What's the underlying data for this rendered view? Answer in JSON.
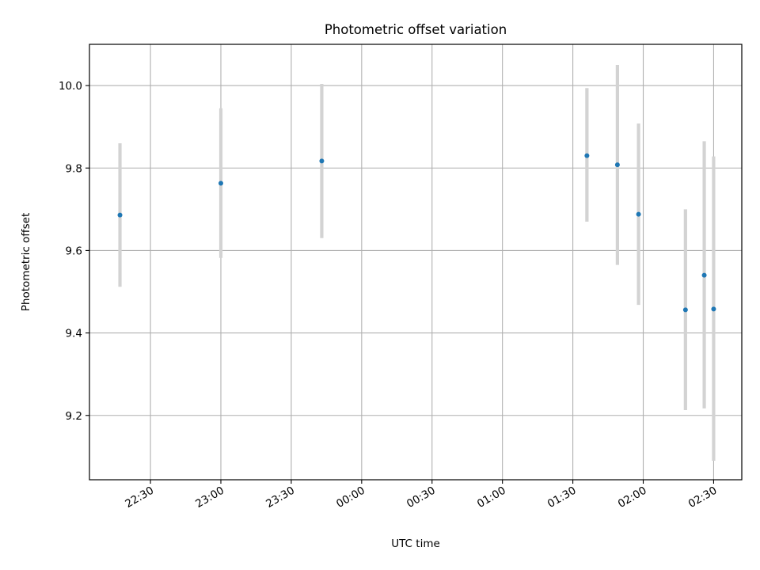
{
  "chart_data": {
    "type": "scatter",
    "title": "Photometric offset variation",
    "xlabel": "UTC time",
    "ylabel": "Photometric offset",
    "x_axis": {
      "kind": "time",
      "range": [
        "22:04",
        "02:42"
      ],
      "ticks": [
        "22:30",
        "23:00",
        "23:30",
        "00:00",
        "00:30",
        "01:00",
        "01:30",
        "02:00",
        "02:30"
      ]
    },
    "y_axis": {
      "range": [
        9.044,
        10.1
      ],
      "ticks": [
        "9.2",
        "9.4",
        "9.6",
        "9.8",
        "10.0"
      ]
    },
    "grid": true,
    "legend": "none",
    "colors": {
      "point": "#1f77b4",
      "errorbar": "#d3d3d3",
      "grid": "#b0b0b0"
    },
    "points": [
      {
        "t": "22:17",
        "y": 9.686,
        "ylow": 9.512,
        "yhigh": 9.86
      },
      {
        "t": "23:00",
        "y": 9.763,
        "ylow": 9.582,
        "yhigh": 9.945
      },
      {
        "t": "23:43",
        "y": 9.817,
        "ylow": 9.63,
        "yhigh": 10.004
      },
      {
        "t": "01:36",
        "y": 9.83,
        "ylow": 9.67,
        "yhigh": 9.994
      },
      {
        "t": "01:49",
        "y": 9.808,
        "ylow": 9.565,
        "yhigh": 10.05
      },
      {
        "t": "01:58",
        "y": 9.688,
        "ylow": 9.468,
        "yhigh": 9.908
      },
      {
        "t": "02:18",
        "y": 9.456,
        "ylow": 9.213,
        "yhigh": 9.7
      },
      {
        "t": "02:26",
        "y": 9.54,
        "ylow": 9.217,
        "yhigh": 9.865
      },
      {
        "t": "02:30",
        "y": 9.458,
        "ylow": 9.09,
        "yhigh": 9.828
      }
    ]
  }
}
